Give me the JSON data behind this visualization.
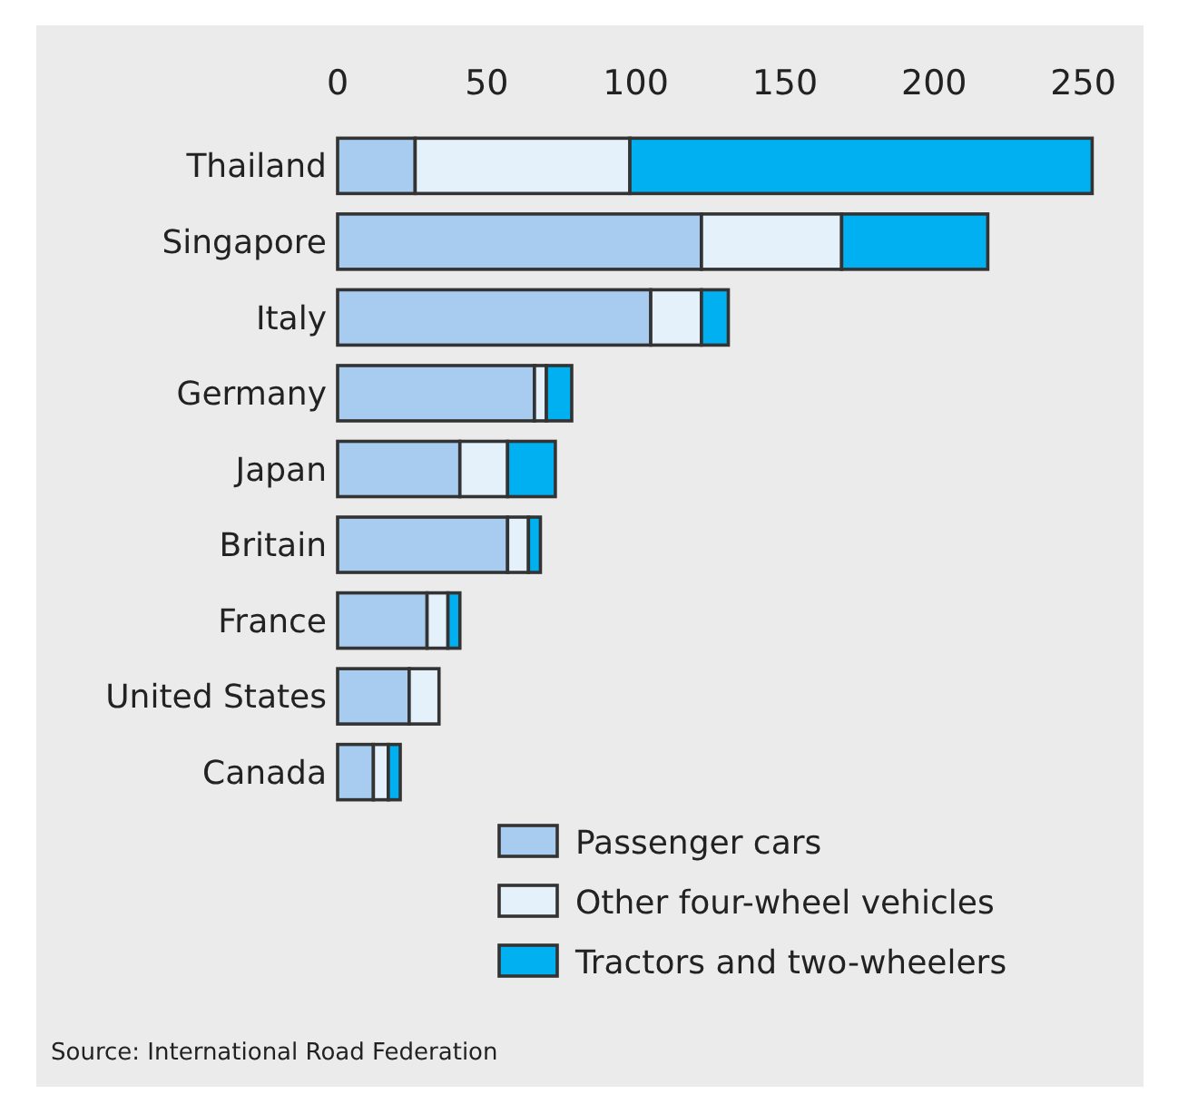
{
  "chart_data": {
    "type": "bar",
    "orientation": "horizontal",
    "stacked": true,
    "categories": [
      "Thailand",
      "Singapore",
      "Italy",
      "Germany",
      "Japan",
      "Britain",
      "France",
      "United States",
      "Canada"
    ],
    "series": [
      {
        "name": "Passenger cars",
        "color": "#a8cbf0",
        "values": [
          26,
          122,
          105,
          66,
          41,
          57,
          30,
          24,
          12
        ]
      },
      {
        "name": "Other four-wheel vehicles",
        "color": "#e4f0fa",
        "values": [
          72,
          47,
          17,
          4,
          16,
          7,
          7,
          10,
          5
        ]
      },
      {
        "name": "Tractors and two-wheelers",
        "color": "#00b0f0",
        "values": [
          155,
          49,
          9,
          8.5,
          16,
          4,
          4,
          0,
          4
        ]
      }
    ],
    "xlim": [
      0,
      255
    ],
    "xticks": [
      0,
      50,
      100,
      150,
      200,
      250
    ],
    "grid": false,
    "legend": "bottom right",
    "annotations": [
      "Source: International Road Federation"
    ]
  }
}
